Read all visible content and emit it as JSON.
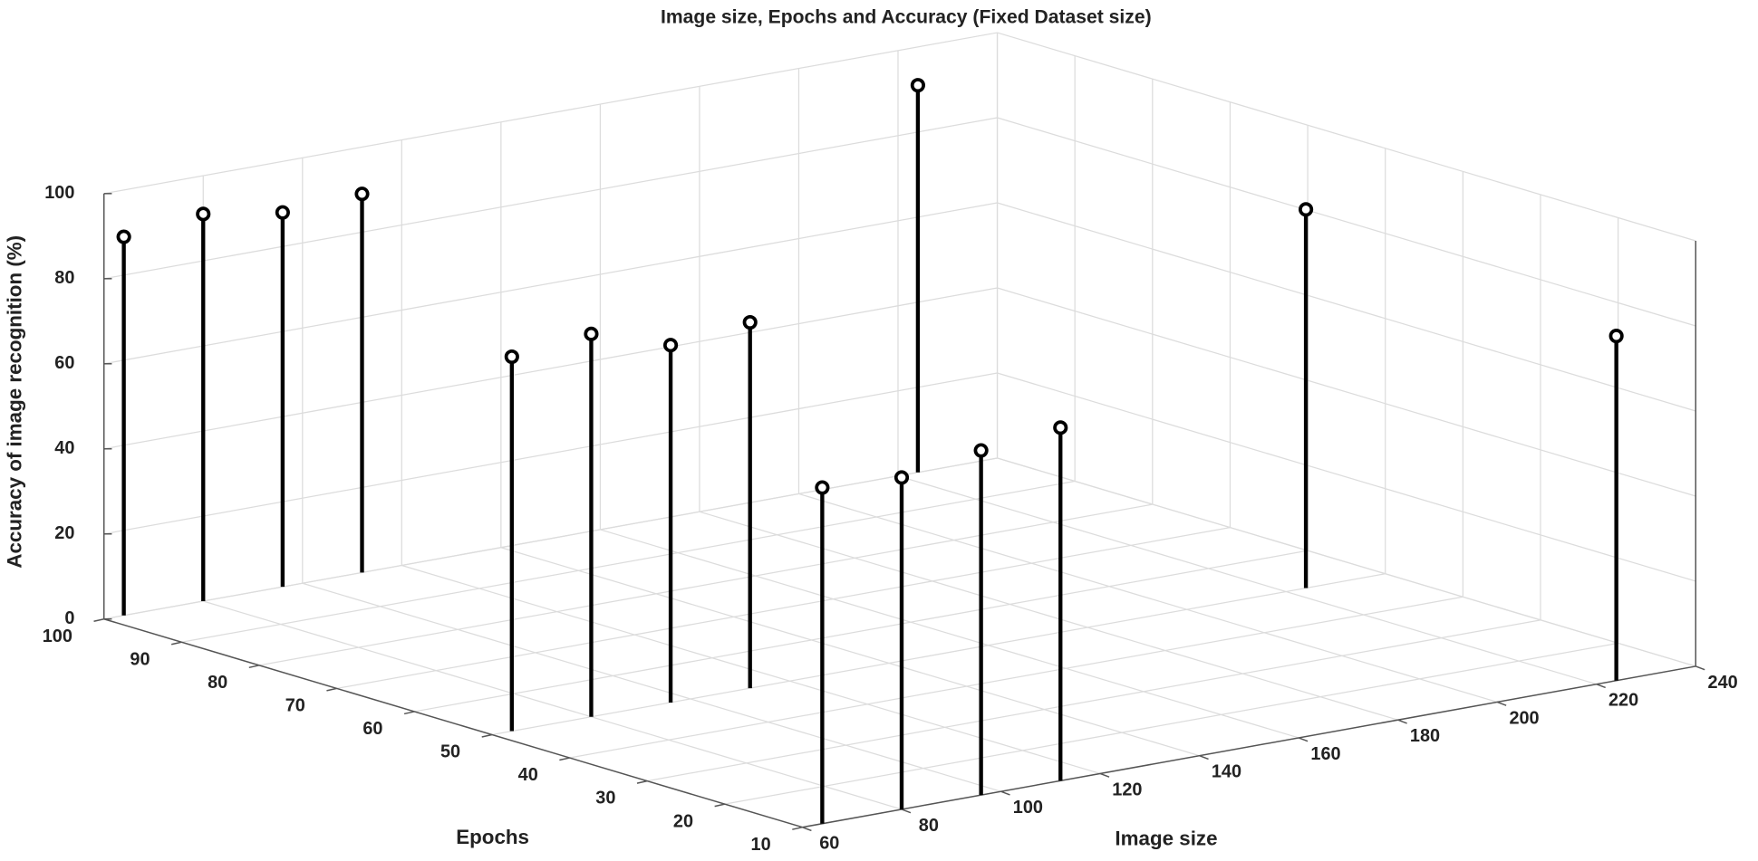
{
  "chart_data": {
    "type": "stem3",
    "title": "Image size, Epochs and Accuracy (Fixed Dataset size)",
    "x_label": "Image size",
    "y_label": "Epochs",
    "z_label": "Accuracy of image recognition (%)",
    "series": [
      {
        "color": "#000000",
        "x": [
          64,
          80,
          96,
          112,
          64,
          80,
          96,
          112,
          64,
          80,
          96,
          112,
          224,
          224,
          224
        ],
        "y": [
          100,
          100,
          100,
          100,
          50,
          50,
          50,
          50,
          10,
          10,
          10,
          10,
          100,
          50,
          10
        ],
        "z": [
          89,
          91,
          88,
          89,
          88,
          90,
          84,
          86,
          79,
          78,
          81,
          83,
          91,
          89,
          81
        ]
      }
    ],
    "xlim": [
      60,
      240
    ],
    "xticks": [
      60,
      80,
      100,
      120,
      140,
      160,
      180,
      200,
      220,
      240
    ],
    "ylim": [
      10,
      100
    ],
    "yticks": [
      10,
      20,
      30,
      40,
      50,
      60,
      70,
      80,
      90,
      100
    ],
    "zlim": [
      0,
      100
    ],
    "zticks": [
      0,
      20,
      40,
      60,
      80,
      100
    ],
    "grid": true
  }
}
